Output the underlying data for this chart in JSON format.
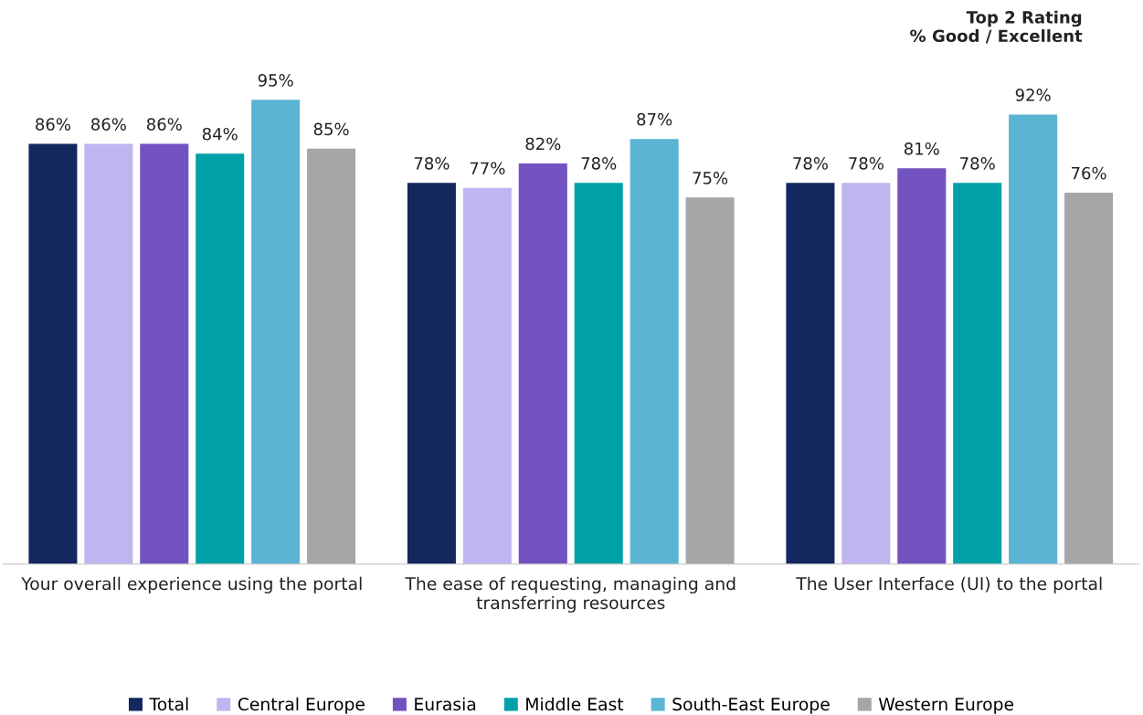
{
  "chart_data": {
    "type": "bar",
    "title": "Top 2 Rating\n% Good / Excellent",
    "categories": [
      "Your overall experience using the portal",
      "The ease of requesting, managing and\ntransferring resources",
      "The User Interface (UI) to the portal"
    ],
    "series": [
      {
        "name": "Total",
        "color": "#14275f",
        "values": [
          86,
          78,
          78
        ],
        "value_labels": [
          "86%",
          "78%",
          "78%"
        ]
      },
      {
        "name": "Central Europe",
        "color": "#c0b5ef",
        "values": [
          86,
          77,
          78
        ],
        "value_labels": [
          "86%",
          "77%",
          "78%"
        ]
      },
      {
        "name": "Eurasia",
        "color": "#7352c1",
        "values": [
          86,
          82,
          81
        ],
        "value_labels": [
          "86%",
          "82%",
          "81%"
        ]
      },
      {
        "name": "Middle East",
        "color": "#00a0a8",
        "values": [
          84,
          78,
          78
        ],
        "value_labels": [
          "84%",
          "78%",
          "78%"
        ]
      },
      {
        "name": "South-East Europe",
        "color": "#5cb4d4",
        "values": [
          95,
          87,
          92
        ],
        "value_labels": [
          "95%",
          "87%",
          "92%"
        ]
      },
      {
        "name": "Western Europe",
        "color": "#a6a6a6",
        "values": [
          85,
          75,
          76
        ],
        "value_labels": [
          "85%",
          "75%",
          "76%"
        ]
      }
    ],
    "tick_labels": "x",
    "grid": false,
    "legend": "bottom"
  }
}
